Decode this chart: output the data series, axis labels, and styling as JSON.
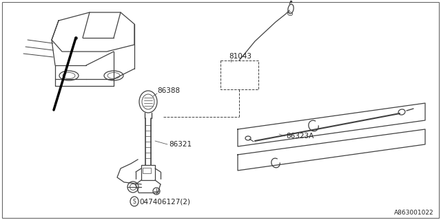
{
  "bg_color": "#ffffff",
  "line_color": "#404040",
  "text_color": "#222222",
  "border_color": "#666666",
  "ref_code": "A863001022",
  "label_81043": "81043",
  "label_86388": "86388",
  "label_86321": "86321",
  "label_86323A": "86323A",
  "label_part": "047406127(2)",
  "figsize": [
    6.4,
    3.2
  ],
  "dpi": 100
}
